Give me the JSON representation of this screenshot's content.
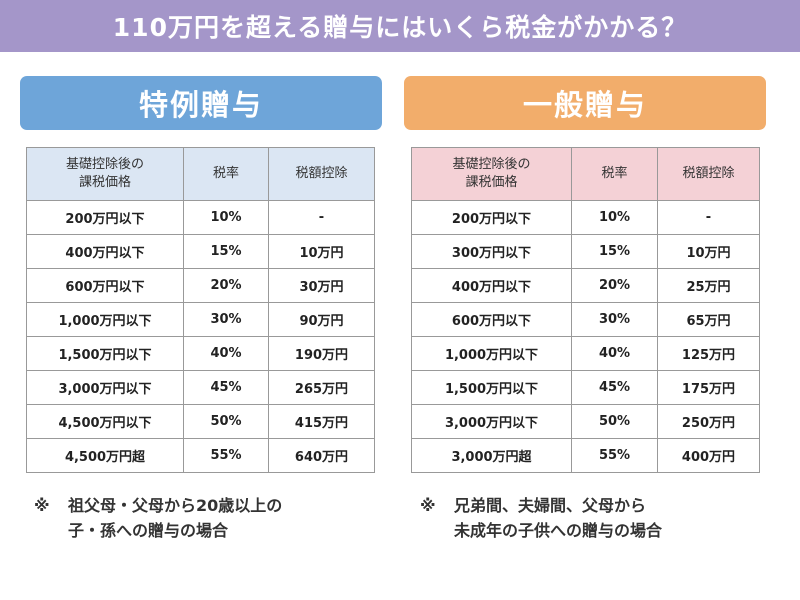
{
  "title": "110万円を超える贈与にはいくら税金がかかる？",
  "left": {
    "header": "特例贈与",
    "columns": [
      "基礎控除後の\n課税価格",
      "税率",
      "税額控除"
    ],
    "rows": [
      [
        "200万円以下",
        "10%",
        "-"
      ],
      [
        "400万円以下",
        "15%",
        "10万円"
      ],
      [
        "600万円以下",
        "20%",
        "30万円"
      ],
      [
        "1,000万円以下",
        "30%",
        "90万円"
      ],
      [
        "1,500万円以下",
        "40%",
        "190万円"
      ],
      [
        "3,000万円以下",
        "45%",
        "265万円"
      ],
      [
        "4,500万円以下",
        "50%",
        "415万円"
      ],
      [
        "4,500万円超",
        "55%",
        "640万円"
      ]
    ],
    "note_mark": "※",
    "note_line1": "祖父母・父母から20歳以上の",
    "note_line2": "子・孫への贈与の場合"
  },
  "right": {
    "header": "一般贈与",
    "columns": [
      "基礎控除後の\n課税価格",
      "税率",
      "税額控除"
    ],
    "rows": [
      [
        "200万円以下",
        "10%",
        "-"
      ],
      [
        "300万円以下",
        "15%",
        "10万円"
      ],
      [
        "400万円以下",
        "20%",
        "25万円"
      ],
      [
        "600万円以下",
        "30%",
        "65万円"
      ],
      [
        "1,000万円以下",
        "40%",
        "125万円"
      ],
      [
        "1,500万円以下",
        "45%",
        "175万円"
      ],
      [
        "3,000万円以下",
        "50%",
        "250万円"
      ],
      [
        "3,000万円超",
        "55%",
        "400万円"
      ]
    ],
    "note_mark": "※",
    "note_line1": "兄弟間、夫婦間、父母から",
    "note_line2": "未成年の子供への贈与の場合"
  },
  "colors": {
    "title_bg": "#a496c9",
    "left_accent": "#6ea5d9",
    "right_accent": "#f2ad6b",
    "left_table_header": "#dbe6f3",
    "right_table_header": "#f4d1d6"
  }
}
